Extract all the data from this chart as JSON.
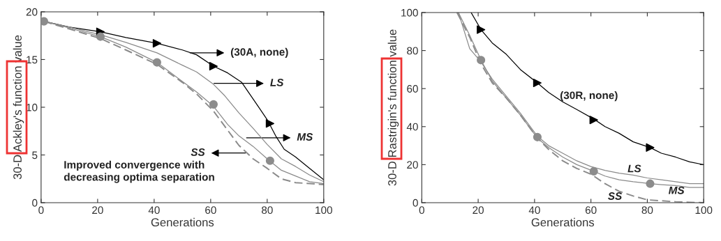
{
  "chart_data": [
    {
      "type": "line",
      "xlabel": "Generations",
      "ylabel": "30-D Ackley's function value",
      "xlim": [
        0,
        100
      ],
      "ylim": [
        0,
        20
      ],
      "xticks": [
        0,
        20,
        40,
        60,
        80,
        100
      ],
      "yticks": [
        0,
        5,
        10,
        15,
        20
      ],
      "grid": false,
      "series": [
        {
          "color": "#000000",
          "line_style": "solid",
          "x": [
            1,
            10,
            21,
            30,
            41,
            50,
            55,
            61,
            66,
            71,
            74,
            77,
            80,
            83,
            86,
            90,
            95,
            100
          ],
          "values": [
            19,
            18.4,
            17.9,
            17.3,
            16.7,
            16.0,
            15.5,
            14.3,
            13.6,
            12.6,
            11.3,
            10.0,
            8.7,
            7.0,
            5.6,
            4.8,
            3.6,
            2.4
          ]
        },
        {
          "color": "#8a8a8a",
          "line_style": "solid",
          "x": [
            1,
            10,
            21,
            30,
            41,
            50,
            55,
            61,
            65,
            70,
            75,
            80,
            85,
            90,
            95,
            100
          ],
          "values": [
            19,
            18.4,
            17.6,
            16.8,
            15.7,
            14.4,
            13.7,
            12.4,
            11.2,
            9.4,
            7.8,
            6.1,
            4.6,
            3.8,
            2.9,
            2.2
          ]
        },
        {
          "color": "#8a8a8a",
          "line_style": "solid",
          "x": [
            1,
            10,
            21,
            30,
            41,
            50,
            55,
            61,
            66,
            70,
            75,
            80,
            85,
            90,
            95,
            100
          ],
          "values": [
            19,
            18.3,
            17.4,
            16.3,
            14.7,
            12.7,
            11.6,
            10.1,
            8.2,
            7.0,
            5.9,
            4.6,
            3.4,
            2.8,
            2.2,
            2.0
          ]
        },
        {
          "color": "#8a8a8a",
          "line_style": "dashed",
          "x": [
            1,
            10,
            21,
            30,
            41,
            50,
            55,
            61,
            65,
            70,
            75,
            80,
            85,
            90,
            95,
            100
          ],
          "values": [
            19,
            18.2,
            17.2,
            16.0,
            14.5,
            12.6,
            11.4,
            9.6,
            8.0,
            6.0,
            4.6,
            3.6,
            2.5,
            2.1,
            2.0,
            1.9
          ]
        },
        {
          "type": "scatter",
          "marker": "triangle",
          "color": "#000000",
          "x": [
            21,
            41,
            61,
            81
          ],
          "values": [
            17.9,
            16.7,
            14.3,
            8.3
          ]
        },
        {
          "type": "scatter",
          "marker": "circle",
          "color": "#8c8c8c",
          "x": [
            1,
            21,
            41,
            61,
            81
          ],
          "values": [
            19,
            17.4,
            14.7,
            10.3,
            4.4
          ]
        }
      ],
      "annotations": [
        "(30A, none)",
        "LS",
        "MS",
        "SS",
        "Improved convergence with\ndecreasing optima separation"
      ]
    },
    {
      "type": "line",
      "xlabel": "Generations",
      "ylabel": "30-D Rastrigin's function value",
      "xlim": [
        0,
        100
      ],
      "ylim": [
        0,
        100
      ],
      "xticks": [
        0,
        20,
        40,
        60,
        80,
        100
      ],
      "yticks": [
        0,
        20,
        40,
        60,
        80,
        100
      ],
      "grid": false,
      "series": [
        {
          "color": "#000000",
          "line_style": "solid",
          "x": [
            17.5,
            21,
            25,
            30,
            35,
            41,
            45,
            50,
            55,
            61,
            65,
            70,
            75,
            81,
            85,
            90,
            95,
            100
          ],
          "values": [
            100,
            91,
            84,
            78,
            70,
            63,
            58,
            53,
            49,
            44,
            40,
            36.5,
            32,
            29,
            26,
            24,
            21.5,
            20
          ]
        },
        {
          "color": "#8a8a8a",
          "line_style": "solid",
          "x": [
            13,
            17,
            21,
            25,
            30,
            35,
            41,
            45,
            50,
            55,
            60,
            65,
            70,
            75,
            80,
            85,
            90,
            95,
            100
          ],
          "values": [
            100,
            81,
            74,
            65,
            56,
            47,
            35,
            30,
            26,
            22,
            19,
            17,
            15.5,
            14.5,
            13,
            12,
            11,
            10,
            10
          ]
        },
        {
          "color": "#8a8a8a",
          "line_style": "solid",
          "x": [
            13,
            17,
            21,
            25,
            30,
            35,
            41,
            45,
            50,
            55,
            61,
            65,
            70,
            75,
            81,
            85,
            90,
            95,
            100
          ],
          "values": [
            100,
            88,
            75,
            64,
            55,
            46,
            34,
            29,
            24,
            20,
            16.5,
            14,
            12,
            11,
            10,
            9.5,
            9,
            8,
            8
          ]
        },
        {
          "color": "#8a8a8a",
          "line_style": "dashed",
          "x": [
            12.5,
            17,
            21,
            25,
            30,
            35,
            41,
            45,
            50,
            55,
            60,
            65,
            70,
            75,
            80,
            85,
            90,
            95,
            100
          ],
          "values": [
            100,
            87,
            73,
            63,
            55,
            46,
            34,
            28,
            22,
            18,
            15,
            10,
            6,
            3.5,
            1.5,
            1,
            0.5,
            0.2,
            0
          ]
        },
        {
          "type": "scatter",
          "marker": "triangle",
          "color": "#000000",
          "x": [
            21,
            41,
            61,
            81
          ],
          "values": [
            91,
            63,
            43.5,
            29
          ]
        },
        {
          "type": "scatter",
          "marker": "circle",
          "color": "#8c8c8c",
          "x": [
            21,
            41,
            61,
            81
          ],
          "values": [
            75,
            34.5,
            16.5,
            10
          ]
        }
      ],
      "annotations": [
        "(30R, none)",
        "LS",
        "MS",
        "SS"
      ]
    }
  ]
}
